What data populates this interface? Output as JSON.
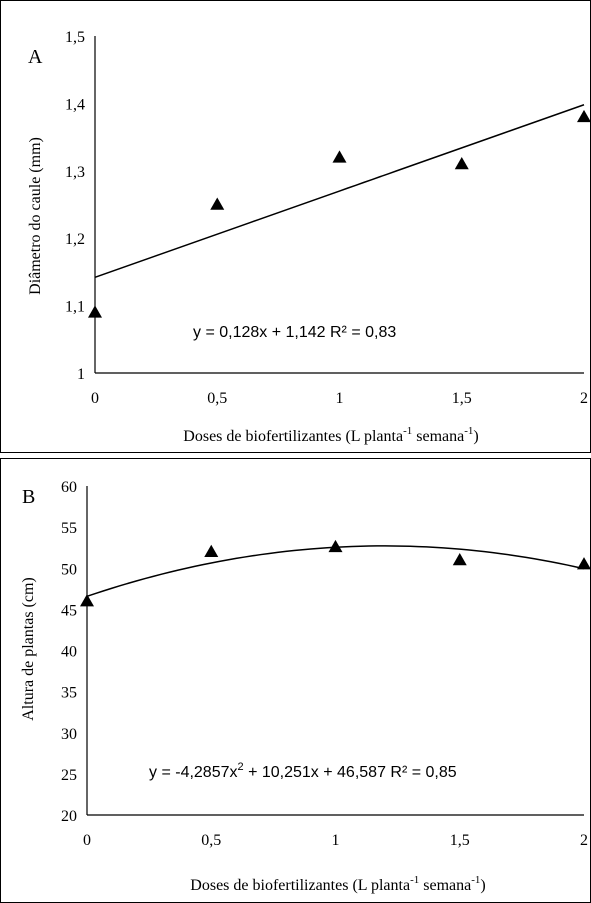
{
  "chart_data": [
    {
      "type": "scatter",
      "panel_label": "A",
      "ylabel": "Diâmetro do caule (mm)",
      "xlabel": {
        "main": "Doses de biofertilizantes (L planta",
        "sup1": "-1",
        "mid": " semana",
        "sup2": "-1",
        "end": ")"
      },
      "xlim": [
        0,
        2
      ],
      "ylim": [
        1,
        1.5
      ],
      "xticks": [
        0,
        0.5,
        1,
        1.5,
        2
      ],
      "xtick_labels": [
        "0",
        "0,5",
        "1",
        "1,5",
        "2"
      ],
      "yticks": [
        1,
        1.1,
        1.2,
        1.3,
        1.4,
        1.5
      ],
      "ytick_labels": [
        "1",
        "1,1",
        "1,2",
        "1,3",
        "1,4",
        "1,5"
      ],
      "points": [
        {
          "x": 0,
          "y": 1.09
        },
        {
          "x": 0.5,
          "y": 1.25
        },
        {
          "x": 1,
          "y": 1.32
        },
        {
          "x": 1.5,
          "y": 1.31
        },
        {
          "x": 2,
          "y": 1.38
        }
      ],
      "trendline": {
        "kind": "linear",
        "coefficients": [
          1.142,
          0.128
        ]
      },
      "equation": "y = 0,128x + 1,142   R² = 0,83",
      "marker": "triangle",
      "color": "#000000"
    },
    {
      "type": "scatter",
      "panel_label": "B",
      "ylabel": "Altura de plantas (cm)",
      "xlabel": {
        "main": "Doses de biofertilizantes (L planta",
        "sup1": "-1",
        "mid": " semana",
        "sup2": "-1",
        "end": ")"
      },
      "xlim": [
        0,
        2
      ],
      "ylim": [
        20,
        60
      ],
      "xticks": [
        0,
        0.5,
        1,
        1.5,
        2
      ],
      "xtick_labels": [
        "0",
        "0,5",
        "1",
        "1,5",
        "2"
      ],
      "yticks": [
        20,
        25,
        30,
        35,
        40,
        45,
        50,
        55,
        60
      ],
      "ytick_labels": [
        "20",
        "25",
        "30",
        "35",
        "40",
        "45",
        "50",
        "55",
        "60"
      ],
      "points": [
        {
          "x": 0,
          "y": 46
        },
        {
          "x": 0.5,
          "y": 52
        },
        {
          "x": 1,
          "y": 52.6
        },
        {
          "x": 1.5,
          "y": 51
        },
        {
          "x": 2,
          "y": 50.5
        }
      ],
      "trendline": {
        "kind": "quadratic",
        "coefficients": [
          46.587,
          10.251,
          -4.2857
        ]
      },
      "equation": {
        "pre": "y = -4,2857x",
        "sup": "2",
        "post": " + 10,251x + 46,587 R² = 0,85"
      },
      "marker": "triangle",
      "color": "#000000"
    }
  ]
}
